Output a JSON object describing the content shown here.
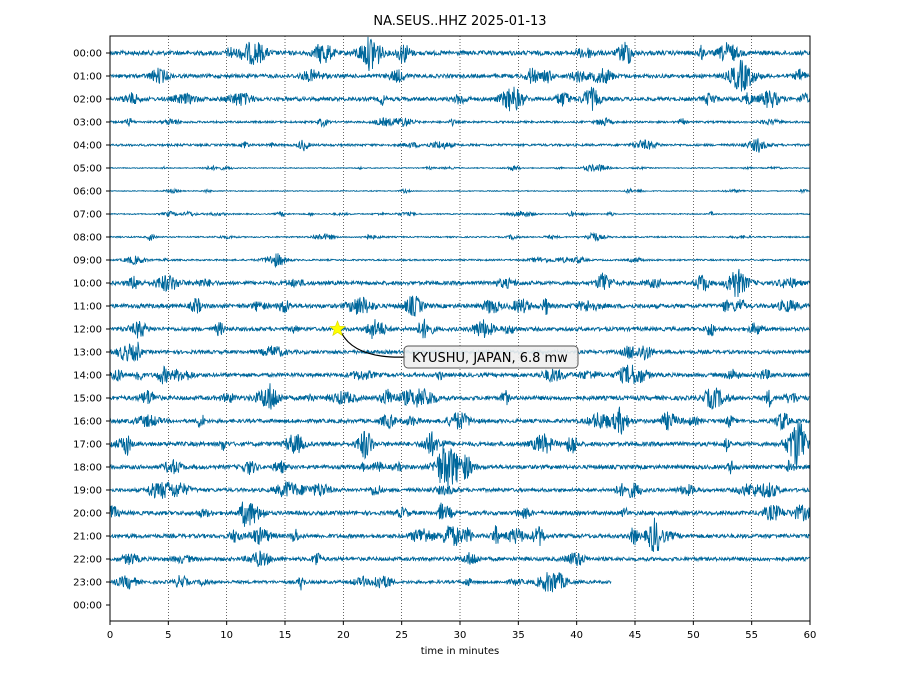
{
  "chart_data": {
    "type": "line",
    "title": "NA.SEUS..HHZ 2025-01-13",
    "xlabel": "time in minutes",
    "ylabel": "",
    "xlim": [
      0,
      60
    ],
    "x_ticks": [
      "0",
      "5",
      "10",
      "15",
      "20",
      "25",
      "30",
      "35",
      "40",
      "45",
      "50",
      "55",
      "60"
    ],
    "y_tick_labels": [
      "00:00",
      "01:00",
      "02:00",
      "03:00",
      "04:00",
      "05:00",
      "06:00",
      "07:00",
      "08:00",
      "09:00",
      "10:00",
      "11:00",
      "12:00",
      "13:00",
      "14:00",
      "15:00",
      "16:00",
      "17:00",
      "18:00",
      "19:00",
      "20:00",
      "21:00",
      "22:00",
      "23:00",
      "00:00"
    ],
    "grid": "vertical dotted lines at each 5-minute tick",
    "trace_color": "#00689c",
    "trace_amplitude_by_hour": [
      1.0,
      0.85,
      0.85,
      0.45,
      0.5,
      0.2,
      0.2,
      0.25,
      0.3,
      0.35,
      0.85,
      0.95,
      0.85,
      0.8,
      0.85,
      0.95,
      0.85,
      0.95,
      0.9,
      0.8,
      0.9,
      0.9,
      0.85,
      0.7
    ],
    "last_trace_end_minute": 43,
    "annotation": {
      "text": "KYUSHU, JAPAN, 6.8 mw",
      "hour_row": 12,
      "minute": 19.5,
      "marker": "star",
      "marker_color": "#ffff00"
    }
  }
}
